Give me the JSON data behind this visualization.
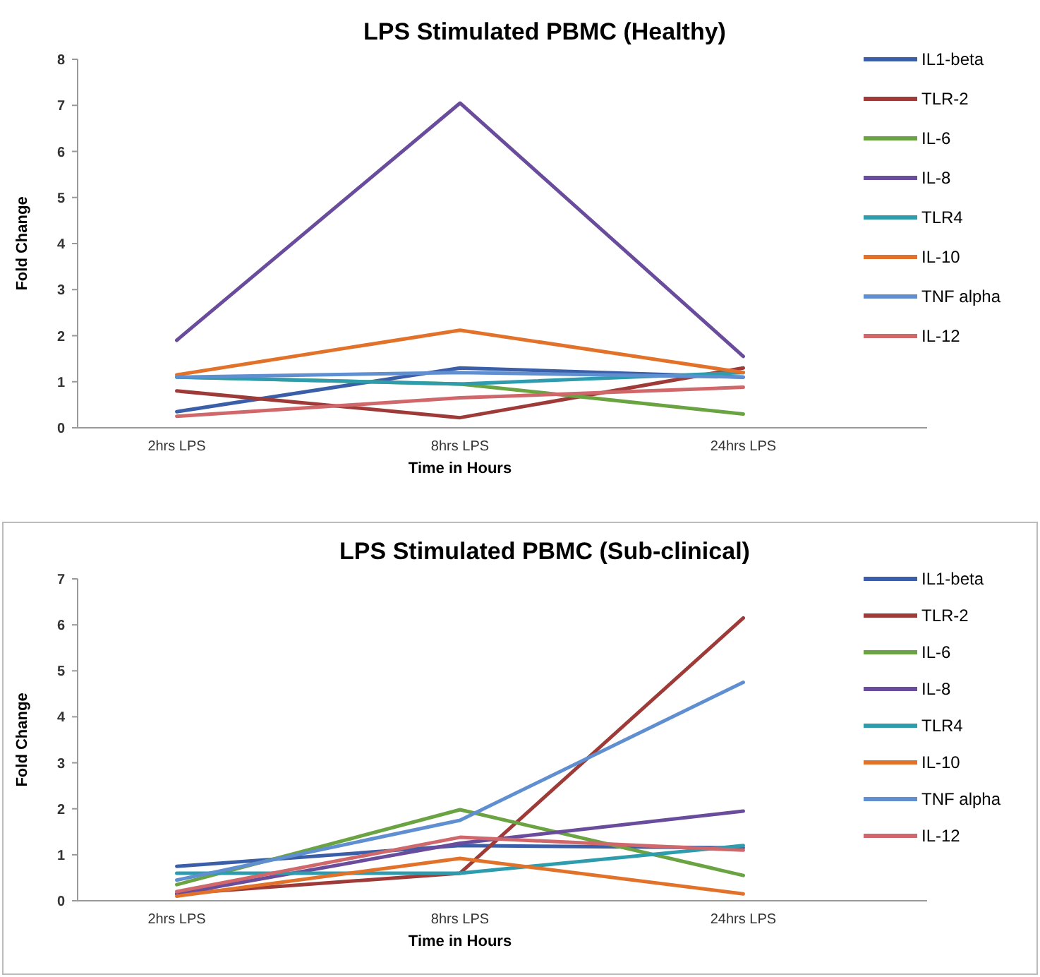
{
  "chart_data": [
    {
      "type": "line",
      "title": "LPS Stimulated PBMC (Healthy)",
      "xlabel": "Time in Hours",
      "ylabel": "Fold Change",
      "categories": [
        "2hrs LPS",
        "8hrs LPS",
        "24hrs LPS"
      ],
      "ylim": [
        0,
        8
      ],
      "yticks": [
        0,
        1,
        2,
        3,
        4,
        5,
        6,
        7,
        8
      ],
      "legend": "right",
      "grid": false,
      "series": [
        {
          "name": "IL1-beta",
          "color": "#3a5fa8",
          "values": [
            0.35,
            1.3,
            1.1
          ]
        },
        {
          "name": "TLR-2",
          "color": "#9e3a38",
          "values": [
            0.8,
            0.22,
            1.3
          ]
        },
        {
          "name": "IL-6",
          "color": "#6aa342",
          "values": [
            1.1,
            0.95,
            0.3
          ]
        },
        {
          "name": "IL-8",
          "color": "#6a4c9c",
          "values": [
            1.9,
            7.05,
            1.55
          ]
        },
        {
          "name": "TLR4",
          "color": "#2e9cad",
          "values": [
            1.1,
            0.95,
            1.2
          ]
        },
        {
          "name": "IL-10",
          "color": "#e2722a",
          "values": [
            1.15,
            2.12,
            1.2
          ]
        },
        {
          "name": "TNF alpha",
          "color": "#5f8fd0",
          "values": [
            1.1,
            1.2,
            1.1
          ]
        },
        {
          "name": "IL-12",
          "color": "#d0676a",
          "values": [
            0.25,
            0.65,
            0.88
          ]
        }
      ]
    },
    {
      "type": "line",
      "title": "LPS Stimulated PBMC (Sub-clinical)",
      "xlabel": "Time in Hours",
      "ylabel": "Fold Change",
      "categories": [
        "2hrs LPS",
        "8hrs LPS",
        "24hrs LPS"
      ],
      "ylim": [
        0,
        7
      ],
      "yticks": [
        0,
        1,
        2,
        3,
        4,
        5,
        6,
        7
      ],
      "legend": "right",
      "grid": false,
      "series": [
        {
          "name": "IL1-beta",
          "color": "#3a5fa8",
          "values": [
            0.75,
            1.2,
            1.15
          ]
        },
        {
          "name": "TLR-2",
          "color": "#9e3a38",
          "values": [
            0.15,
            0.6,
            6.15
          ]
        },
        {
          "name": "IL-6",
          "color": "#6aa342",
          "values": [
            0.35,
            1.98,
            0.55
          ]
        },
        {
          "name": "IL-8",
          "color": "#6a4c9c",
          "values": [
            0.15,
            1.25,
            1.95
          ]
        },
        {
          "name": "TLR4",
          "color": "#2e9cad",
          "values": [
            0.6,
            0.6,
            1.2
          ]
        },
        {
          "name": "IL-10",
          "color": "#e2722a",
          "values": [
            0.1,
            0.92,
            0.15
          ]
        },
        {
          "name": "TNF alpha",
          "color": "#5f8fd0",
          "values": [
            0.45,
            1.75,
            4.75
          ]
        },
        {
          "name": "IL-12",
          "color": "#d0676a",
          "values": [
            0.2,
            1.38,
            1.1
          ]
        }
      ]
    }
  ]
}
